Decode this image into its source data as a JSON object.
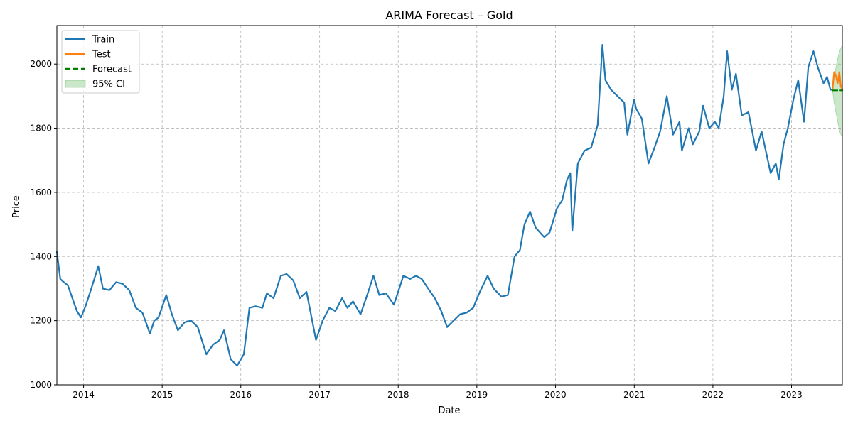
{
  "chart_data": {
    "type": "line",
    "title": "ARIMA Forecast – Gold",
    "xlabel": "Date",
    "ylabel": "Price",
    "xlim": [
      "2013-08-30",
      "2023-08-25"
    ],
    "ylim": [
      1000,
      2120
    ],
    "x_ticks": [
      "2014-01-01",
      "2015-01-01",
      "2016-01-01",
      "2017-01-01",
      "2018-01-01",
      "2019-01-01",
      "2020-01-01",
      "2021-01-01",
      "2022-01-01",
      "2023-01-01"
    ],
    "x_tick_labels": [
      "2014",
      "2015",
      "2016",
      "2017",
      "2018",
      "2019",
      "2020",
      "2021",
      "2022",
      "2023"
    ],
    "y_ticks": [
      1000,
      1200,
      1400,
      1600,
      1800,
      2000
    ],
    "y_tick_labels": [
      "1000",
      "1200",
      "1400",
      "1600",
      "1800",
      "2000"
    ],
    "grid": true,
    "legend_position": "top-left",
    "colors": {
      "train": "#1f77b4",
      "test": "#ff7f0e",
      "forecast": "#008000",
      "ci": "#2ca02c"
    },
    "legend": [
      {
        "label": "Train",
        "style": "line",
        "color": "#1f77b4"
      },
      {
        "label": "Test",
        "style": "line",
        "color": "#ff7f0e"
      },
      {
        "label": "Forecast",
        "style": "dashed",
        "color": "#008000"
      },
      {
        "label": "95% CI",
        "style": "patch",
        "color": "#2ca02c"
      }
    ],
    "series": [
      {
        "name": "Train",
        "x": [
          "2013-08-30",
          "2013-09-15",
          "2013-10-01",
          "2013-10-20",
          "2013-11-10",
          "2013-12-01",
          "2013-12-20",
          "2014-01-10",
          "2014-02-01",
          "2014-02-20",
          "2014-03-10",
          "2014-04-01",
          "2014-05-01",
          "2014-06-01",
          "2014-07-01",
          "2014-08-01",
          "2014-09-01",
          "2014-10-01",
          "2014-11-05",
          "2014-11-25",
          "2014-12-15",
          "2015-01-20",
          "2015-02-15",
          "2015-03-15",
          "2015-04-15",
          "2015-05-15",
          "2015-06-15",
          "2015-07-25",
          "2015-08-25",
          "2015-09-25",
          "2015-10-15",
          "2015-11-15",
          "2015-12-15",
          "2016-01-15",
          "2016-02-10",
          "2016-03-10",
          "2016-04-10",
          "2016-05-01",
          "2016-06-01",
          "2016-07-05",
          "2016-08-01",
          "2016-09-01",
          "2016-10-01",
          "2016-11-01",
          "2016-12-15",
          "2017-01-15",
          "2017-02-15",
          "2017-03-15",
          "2017-04-15",
          "2017-05-10",
          "2017-06-05",
          "2017-07-10",
          "2017-08-10",
          "2017-09-08",
          "2017-10-05",
          "2017-11-05",
          "2017-12-12",
          "2018-01-25",
          "2018-02-25",
          "2018-03-25",
          "2018-04-20",
          "2018-05-20",
          "2018-06-20",
          "2018-07-20",
          "2018-08-16",
          "2018-09-15",
          "2018-10-15",
          "2018-11-15",
          "2018-12-15",
          "2019-01-15",
          "2019-02-20",
          "2019-03-20",
          "2019-04-25",
          "2019-05-25",
          "2019-06-25",
          "2019-07-20",
          "2019-08-10",
          "2019-09-05",
          "2019-10-01",
          "2019-11-10",
          "2019-12-05",
          "2020-01-08",
          "2020-02-01",
          "2020-02-24",
          "2020-03-10",
          "2020-03-19",
          "2020-04-14",
          "2020-05-15",
          "2020-06-15",
          "2020-07-15",
          "2020-08-06",
          "2020-08-20",
          "2020-09-15",
          "2020-10-15",
          "2020-11-15",
          "2020-11-30",
          "2020-12-31",
          "2021-01-10",
          "2021-02-05",
          "2021-03-08",
          "2021-04-05",
          "2021-05-01",
          "2021-06-01",
          "2021-06-30",
          "2021-07-30",
          "2021-08-10",
          "2021-09-10",
          "2021-09-30",
          "2021-10-30",
          "2021-11-16",
          "2021-12-15",
          "2022-01-10",
          "2022-01-28",
          "2022-02-20",
          "2022-03-08",
          "2022-03-30",
          "2022-04-18",
          "2022-05-15",
          "2022-06-15",
          "2022-07-20",
          "2022-08-15",
          "2022-09-26",
          "2022-10-20",
          "2022-11-03",
          "2022-11-25",
          "2022-12-15",
          "2023-01-10",
          "2023-02-01",
          "2023-02-28",
          "2023-03-20",
          "2023-04-13",
          "2023-05-03",
          "2023-05-30",
          "2023-06-15",
          "2023-07-01",
          "2023-07-10"
        ],
        "y": [
          1415,
          1330,
          1320,
          1310,
          1270,
          1230,
          1210,
          1245,
          1290,
          1330,
          1370,
          1300,
          1295,
          1320,
          1315,
          1295,
          1240,
          1225,
          1160,
          1200,
          1210,
          1280,
          1220,
          1170,
          1195,
          1200,
          1180,
          1095,
          1125,
          1140,
          1170,
          1080,
          1060,
          1095,
          1240,
          1245,
          1240,
          1285,
          1270,
          1340,
          1345,
          1325,
          1270,
          1290,
          1140,
          1200,
          1240,
          1230,
          1270,
          1240,
          1260,
          1220,
          1280,
          1340,
          1280,
          1285,
          1250,
          1340,
          1330,
          1340,
          1330,
          1300,
          1270,
          1230,
          1180,
          1200,
          1220,
          1225,
          1240,
          1290,
          1340,
          1300,
          1275,
          1280,
          1400,
          1420,
          1500,
          1540,
          1490,
          1460,
          1475,
          1550,
          1575,
          1640,
          1660,
          1480,
          1690,
          1730,
          1740,
          1810,
          2060,
          1950,
          1920,
          1900,
          1880,
          1780,
          1890,
          1860,
          1830,
          1690,
          1740,
          1790,
          1900,
          1780,
          1820,
          1730,
          1800,
          1750,
          1790,
          1870,
          1800,
          1820,
          1800,
          1900,
          2040,
          1920,
          1970,
          1840,
          1850,
          1730,
          1790,
          1660,
          1690,
          1640,
          1750,
          1800,
          1890,
          1950,
          1820,
          1990,
          2040,
          1990,
          1940,
          1960,
          1920,
          1920
        ]
      },
      {
        "name": "Test",
        "x": [
          "2023-07-10",
          "2023-07-18",
          "2023-07-26",
          "2023-08-03",
          "2023-08-11",
          "2023-08-18",
          "2023-08-25"
        ],
        "y": [
          1920,
          1975,
          1965,
          1940,
          1975,
          1930,
          1920
        ]
      },
      {
        "name": "Forecast",
        "x": [
          "2023-07-10",
          "2023-08-25"
        ],
        "y": [
          1918,
          1918
        ]
      },
      {
        "name": "95% CI",
        "x": [
          "2023-07-10",
          "2023-07-20",
          "2023-08-01",
          "2023-08-12",
          "2023-08-25"
        ],
        "y_lower": [
          1918,
          1870,
          1830,
          1790,
          1770
        ],
        "y_upper": [
          1918,
          1965,
          2010,
          2040,
          2060
        ]
      }
    ]
  }
}
